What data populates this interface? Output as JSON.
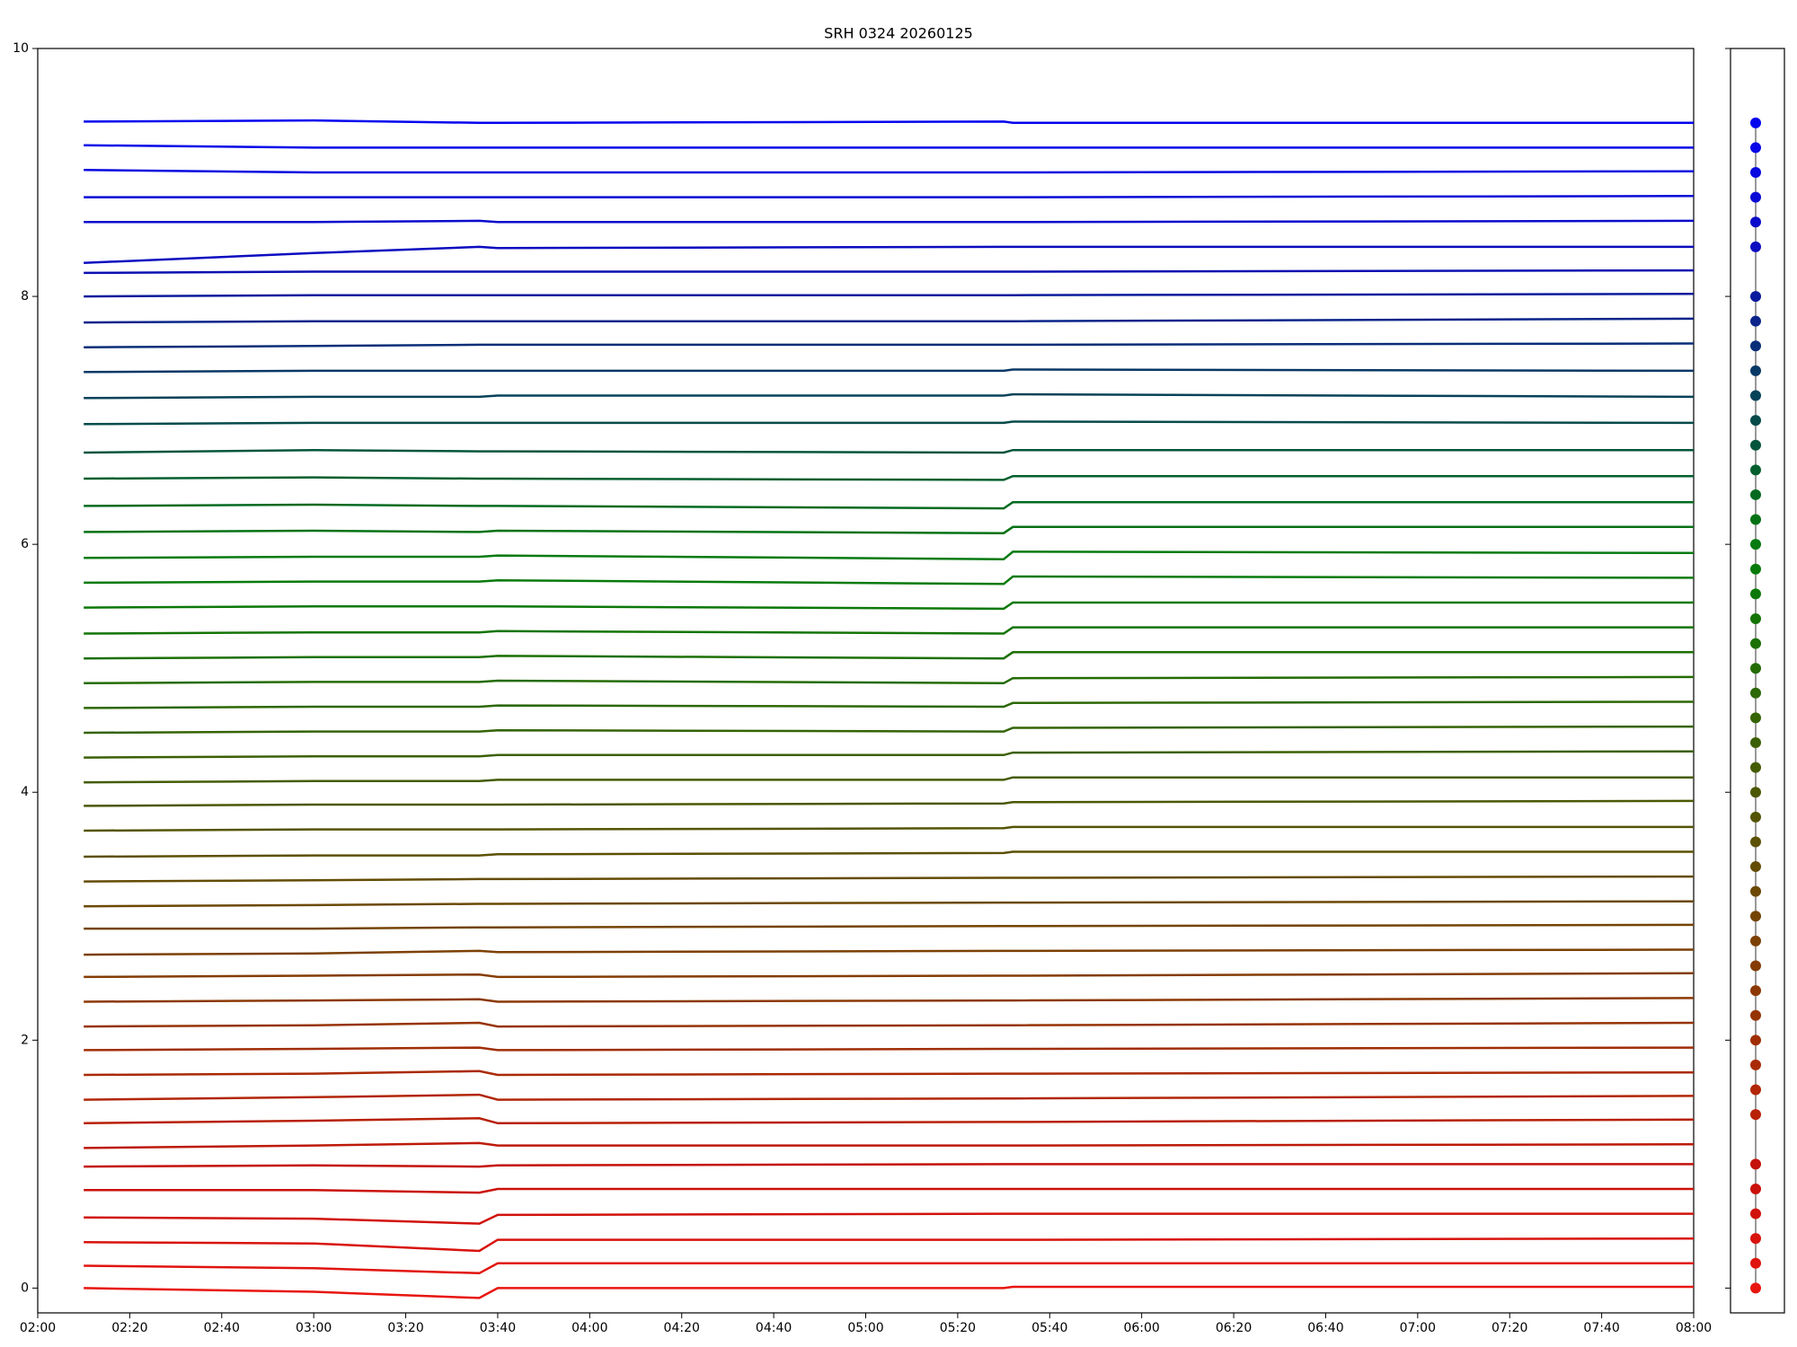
{
  "chart_data": [
    {
      "type": "line",
      "title": "SRH 0324 20260125",
      "x": [
        "02:10",
        "03:00",
        "03:36",
        "03:40",
        "05:30",
        "05:32",
        "08:00"
      ],
      "xlim": [
        "02:00",
        "08:00"
      ],
      "xticks": [
        "02:00",
        "02:20",
        "02:40",
        "03:00",
        "03:20",
        "03:40",
        "04:00",
        "04:20",
        "04:40",
        "05:00",
        "05:20",
        "05:40",
        "06:00",
        "06:20",
        "06:40",
        "07:00",
        "07:20",
        "07:40",
        "08:00"
      ],
      "ylim": [
        -0.2,
        10
      ],
      "yticks": [
        0,
        2,
        4,
        6,
        8,
        10
      ],
      "series": [
        {
          "color": "#e8150f",
          "values": [
            0,
            -0.03,
            -0.08,
            0,
            0,
            0.01,
            0.01
          ]
        },
        {
          "color": "#e0140e",
          "values": [
            0.18,
            0.16,
            0.12,
            0.2,
            0.2,
            0.2,
            0.2
          ]
        },
        {
          "color": "#d8130d",
          "values": [
            0.37,
            0.36,
            0.3,
            0.39,
            0.39,
            0.39,
            0.4
          ]
        },
        {
          "color": "#d1120c",
          "values": [
            0.57,
            0.56,
            0.52,
            0.59,
            0.6,
            0.6,
            0.6
          ]
        },
        {
          "color": "#ca120b",
          "values": [
            0.79,
            0.79,
            0.77,
            0.8,
            0.8,
            0.8,
            0.8
          ]
        },
        {
          "color": "#c4110a",
          "values": [
            0.98,
            0.99,
            0.98,
            0.99,
            1.0,
            1.0,
            1.0
          ]
        },
        {
          "color": "#bd1a09",
          "values": [
            1.13,
            1.15,
            1.17,
            1.15,
            1.15,
            1.15,
            1.16
          ]
        },
        {
          "color": "#b82008",
          "values": [
            1.33,
            1.35,
            1.37,
            1.33,
            1.34,
            1.34,
            1.36
          ]
        },
        {
          "color": "#b22607",
          "values": [
            1.52,
            1.54,
            1.56,
            1.52,
            1.53,
            1.53,
            1.55
          ]
        },
        {
          "color": "#aa2a06",
          "values": [
            1.72,
            1.73,
            1.75,
            1.72,
            1.73,
            1.73,
            1.74
          ]
        },
        {
          "color": "#a02e05",
          "values": [
            1.92,
            1.93,
            1.94,
            1.92,
            1.93,
            1.93,
            1.94
          ]
        },
        {
          "color": "#963305",
          "values": [
            2.11,
            2.12,
            2.14,
            2.11,
            2.12,
            2.12,
            2.14
          ]
        },
        {
          "color": "#8c3804",
          "values": [
            2.31,
            2.32,
            2.33,
            2.31,
            2.32,
            2.32,
            2.34
          ]
        },
        {
          "color": "#843c04",
          "values": [
            2.51,
            2.52,
            2.53,
            2.51,
            2.52,
            2.52,
            2.54
          ]
        },
        {
          "color": "#7c4004",
          "values": [
            2.69,
            2.7,
            2.72,
            2.71,
            2.72,
            2.72,
            2.73
          ]
        },
        {
          "color": "#744404",
          "values": [
            2.9,
            2.9,
            2.91,
            2.91,
            2.92,
            2.92,
            2.93
          ]
        },
        {
          "color": "#6c4804",
          "values": [
            3.08,
            3.09,
            3.1,
            3.1,
            3.11,
            3.11,
            3.12
          ]
        },
        {
          "color": "#644c04",
          "values": [
            3.28,
            3.29,
            3.3,
            3.3,
            3.31,
            3.31,
            3.32
          ]
        },
        {
          "color": "#5c5004",
          "values": [
            3.48,
            3.49,
            3.49,
            3.5,
            3.51,
            3.52,
            3.52
          ]
        },
        {
          "color": "#545404",
          "values": [
            3.69,
            3.7,
            3.7,
            3.7,
            3.71,
            3.72,
            3.72
          ]
        },
        {
          "color": "#4c5804",
          "values": [
            3.89,
            3.9,
            3.9,
            3.9,
            3.91,
            3.92,
            3.93
          ]
        },
        {
          "color": "#445c04",
          "values": [
            4.08,
            4.09,
            4.09,
            4.1,
            4.1,
            4.12,
            4.12
          ]
        },
        {
          "color": "#3c6004",
          "values": [
            4.28,
            4.29,
            4.29,
            4.3,
            4.3,
            4.32,
            4.33
          ]
        },
        {
          "color": "#346404",
          "values": [
            4.48,
            4.49,
            4.49,
            4.5,
            4.49,
            4.52,
            4.53
          ]
        },
        {
          "color": "#2c6804",
          "values": [
            4.68,
            4.69,
            4.69,
            4.7,
            4.69,
            4.72,
            4.73
          ]
        },
        {
          "color": "#246c04",
          "values": [
            4.88,
            4.89,
            4.89,
            4.9,
            4.88,
            4.92,
            4.93
          ]
        },
        {
          "color": "#1c7004",
          "values": [
            5.08,
            5.09,
            5.09,
            5.1,
            5.08,
            5.13,
            5.13
          ]
        },
        {
          "color": "#147406",
          "values": [
            5.28,
            5.29,
            5.29,
            5.3,
            5.28,
            5.33,
            5.33
          ]
        },
        {
          "color": "#0c7808",
          "values": [
            5.49,
            5.5,
            5.5,
            5.5,
            5.48,
            5.53,
            5.53
          ]
        },
        {
          "color": "#087a0c",
          "values": [
            5.69,
            5.7,
            5.7,
            5.71,
            5.68,
            5.74,
            5.73
          ]
        },
        {
          "color": "#067a10",
          "values": [
            5.89,
            5.9,
            5.9,
            5.91,
            5.88,
            5.94,
            5.93
          ]
        },
        {
          "color": "#047214",
          "values": [
            6.1,
            6.11,
            6.1,
            6.11,
            6.09,
            6.14,
            6.14
          ]
        },
        {
          "color": "#046a20",
          "values": [
            6.31,
            6.32,
            6.31,
            6.31,
            6.29,
            6.34,
            6.34
          ]
        },
        {
          "color": "#045f2e",
          "values": [
            6.53,
            6.54,
            6.53,
            6.53,
            6.52,
            6.55,
            6.55
          ]
        },
        {
          "color": "#05553c",
          "values": [
            6.74,
            6.76,
            6.75,
            6.75,
            6.74,
            6.76,
            6.76
          ]
        },
        {
          "color": "#064b4a",
          "values": [
            6.97,
            6.98,
            6.98,
            6.98,
            6.98,
            6.99,
            6.98
          ]
        },
        {
          "color": "#074258",
          "values": [
            7.18,
            7.19,
            7.19,
            7.2,
            7.2,
            7.21,
            7.19
          ]
        },
        {
          "color": "#083866",
          "values": [
            7.39,
            7.4,
            7.4,
            7.4,
            7.4,
            7.41,
            7.4
          ]
        },
        {
          "color": "#092e78",
          "values": [
            7.59,
            7.6,
            7.61,
            7.61,
            7.61,
            7.61,
            7.62
          ]
        },
        {
          "color": "#0a248a",
          "values": [
            7.79,
            7.8,
            7.8,
            7.8,
            7.8,
            7.8,
            7.82
          ]
        },
        {
          "color": "#0b1a9c",
          "values": [
            8.0,
            8.01,
            8.01,
            8.01,
            8.01,
            8.01,
            8.02
          ]
        },
        {
          "color": "#0c10b0",
          "values": [
            8.19,
            8.2,
            8.2,
            8.2,
            8.2,
            8.2,
            8.21
          ]
        },
        {
          "color": "#0c0cc0",
          "values": [
            8.27,
            8.35,
            8.4,
            8.39,
            8.4,
            8.4,
            8.4
          ]
        },
        {
          "color": "#0b0bcc",
          "values": [
            8.6,
            8.6,
            8.61,
            8.6,
            8.6,
            8.6,
            8.61
          ]
        },
        {
          "color": "#0a0ad6",
          "values": [
            8.8,
            8.8,
            8.8,
            8.8,
            8.8,
            8.8,
            8.81
          ]
        },
        {
          "color": "#0808e0",
          "values": [
            9.02,
            9.0,
            9.0,
            9.0,
            9.0,
            9.0,
            9.01
          ]
        },
        {
          "color": "#0606e8",
          "values": [
            9.22,
            9.2,
            9.2,
            9.2,
            9.2,
            9.2,
            9.2
          ]
        },
        {
          "color": "#0404ee",
          "values": [
            9.41,
            9.42,
            9.4,
            9.4,
            9.41,
            9.4,
            9.4
          ]
        }
      ]
    },
    {
      "type": "scatter",
      "values": [
        0,
        0.2,
        0.4,
        0.6,
        0.8,
        1.0,
        1.4,
        1.6,
        1.8,
        2.0,
        2.2,
        2.4,
        2.6,
        2.8,
        3.0,
        3.2,
        3.4,
        3.6,
        3.8,
        4.0,
        4.2,
        4.4,
        4.6,
        4.8,
        5.0,
        5.2,
        5.4,
        5.6,
        5.8,
        6.0,
        6.2,
        6.4,
        6.6,
        6.8,
        7.0,
        7.2,
        7.4,
        7.6,
        7.8,
        8.0,
        8.4,
        8.6,
        8.8,
        9.0,
        9.2,
        9.4
      ],
      "colors": [
        "#e8150f",
        "#e0140e",
        "#d8130d",
        "#d1120c",
        "#ca120b",
        "#c4110a",
        "#b82008",
        "#b22607",
        "#aa2a06",
        "#a02e05",
        "#963305",
        "#8c3804",
        "#843c04",
        "#7c4004",
        "#744404",
        "#6c4804",
        "#644c04",
        "#5c5004",
        "#545404",
        "#4c5804",
        "#445c04",
        "#3c6004",
        "#346404",
        "#2c6804",
        "#246c04",
        "#1c7004",
        "#147406",
        "#0c7808",
        "#087a0c",
        "#067a10",
        "#047214",
        "#046a20",
        "#045f2e",
        "#05553c",
        "#064b4a",
        "#074258",
        "#083866",
        "#092e78",
        "#0a248a",
        "#0b1a9c",
        "#0c0cc0",
        "#0b0bcc",
        "#0a0ad6",
        "#0808e0",
        "#0606e8",
        "#0404ee"
      ]
    }
  ]
}
